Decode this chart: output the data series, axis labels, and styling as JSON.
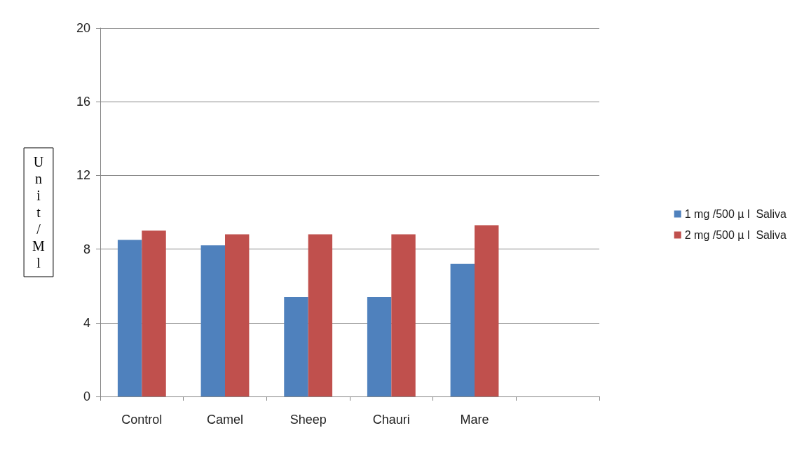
{
  "chart_data": {
    "type": "bar",
    "ylabel": "Unit/Ml",
    "categories": [
      "Control",
      "Camel",
      "Sheep",
      "Chauri",
      "Mare",
      null
    ],
    "series": [
      {
        "name": "1 mg /500 µ l  Saliva",
        "color": "#4f81bd",
        "values": [
          8.5,
          8.2,
          5.4,
          5.4,
          7.2,
          null
        ]
      },
      {
        "name": "2 mg /500 µ l  Saliva",
        "color": "#c0504d",
        "values": [
          9.0,
          8.8,
          8.8,
          8.8,
          9.3,
          null
        ]
      }
    ],
    "ylim": [
      0,
      20
    ],
    "yticks": [
      0,
      4,
      8,
      12,
      16,
      20
    ],
    "grid": "y",
    "legend": "right"
  }
}
